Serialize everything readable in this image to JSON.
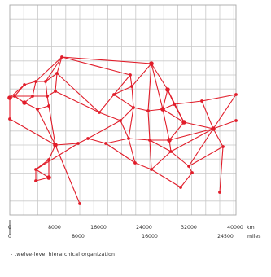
{
  "figure": {
    "km_axis": {
      "unit": "km",
      "ticks": [
        "0",
        "8000",
        "16000",
        "24000",
        "32000",
        "40000"
      ]
    },
    "miles_axis": {
      "unit": "miles",
      "ticks": [
        "0",
        "8000",
        "16000",
        "24500"
      ]
    },
    "caption": "- twelve-level hierarchical organization",
    "colors": {
      "network": "#e11d2a",
      "grid": "#c9c9c9",
      "frame": "#a8a8a8",
      "text": "#2a2a2a"
    }
  }
}
